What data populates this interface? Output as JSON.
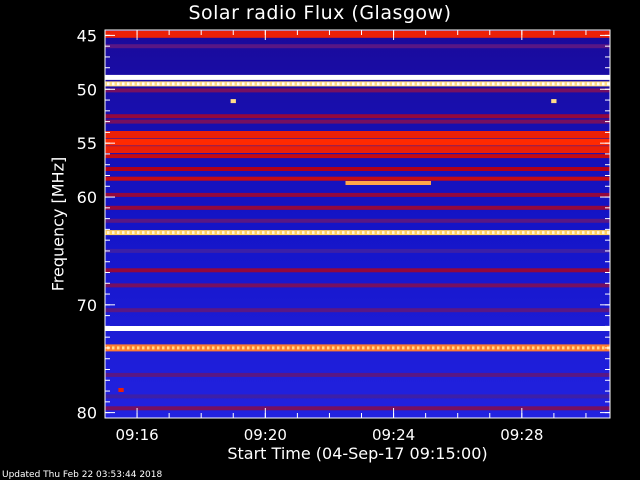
{
  "chart_data": {
    "type": "heatmap",
    "title": "Solar radio Flux (Glasgow)",
    "xlabel": "Start Time (04-Sep-17 09:15:00)",
    "ylabel": "Frequency [MHz]",
    "xlim": [
      "09:15:00",
      "09:30:45"
    ],
    "ylim": [
      80.5,
      44.5
    ],
    "x_ticks": [
      "09:16",
      "09:20",
      "09:24",
      "09:28"
    ],
    "y_ticks": [
      45,
      50,
      55,
      60,
      70,
      80
    ],
    "colormap": [
      "#0000ff",
      "#3c1fa8",
      "#b0001a",
      "#ff2a00",
      "#ffd060",
      "#ffffff"
    ],
    "background_colormap_level": 0.12,
    "frequency_bands": [
      {
        "freq": 44.9,
        "level": 0.55
      },
      {
        "freq": 46.0,
        "level": 0.25
      },
      {
        "freq": 48.9,
        "level": 1.0
      },
      {
        "freq": 49.5,
        "level": 0.85
      },
      {
        "freq": 50.1,
        "level": 0.3
      },
      {
        "freq": 52.5,
        "level": 0.35
      },
      {
        "freq": 53.0,
        "level": 0.3
      },
      {
        "freq": 54.2,
        "level": 0.55
      },
      {
        "freq": 54.9,
        "level": 0.6
      },
      {
        "freq": 55.6,
        "level": 0.55
      },
      {
        "freq": 56.2,
        "level": 0.45
      },
      {
        "freq": 57.4,
        "level": 0.4
      },
      {
        "freq": 58.3,
        "level": 0.45
      },
      {
        "freq": 59.8,
        "level": 0.35
      },
      {
        "freq": 61.0,
        "level": 0.35
      },
      {
        "freq": 62.2,
        "level": 0.25
      },
      {
        "freq": 63.3,
        "level": 0.8
      },
      {
        "freq": 65.0,
        "level": 0.2
      },
      {
        "freq": 66.8,
        "level": 0.35
      },
      {
        "freq": 68.2,
        "level": 0.3
      },
      {
        "freq": 70.5,
        "level": 0.25
      },
      {
        "freq": 72.2,
        "level": 1.0
      },
      {
        "freq": 74.0,
        "level": 0.7
      },
      {
        "freq": 76.5,
        "level": 0.25
      },
      {
        "freq": 78.5,
        "level": 0.2
      },
      {
        "freq": 79.6,
        "level": 0.3
      }
    ],
    "features": [
      {
        "time_start": "09:22:30",
        "time_end": "09:25:10",
        "freq": 58.7,
        "level": 0.75
      },
      {
        "time_start": "09:18:55",
        "time_end": "09:19:05",
        "freq": 51.1,
        "level": 0.85
      },
      {
        "time_start": "09:28:55",
        "time_end": "09:29:05",
        "freq": 51.1,
        "level": 0.85
      },
      {
        "time_start": "09:15:25",
        "time_end": "09:15:35",
        "freq": 77.9,
        "level": 0.55
      }
    ]
  },
  "footer": {
    "updated": "Updated Thu Feb 22 03:53:44 2018"
  }
}
